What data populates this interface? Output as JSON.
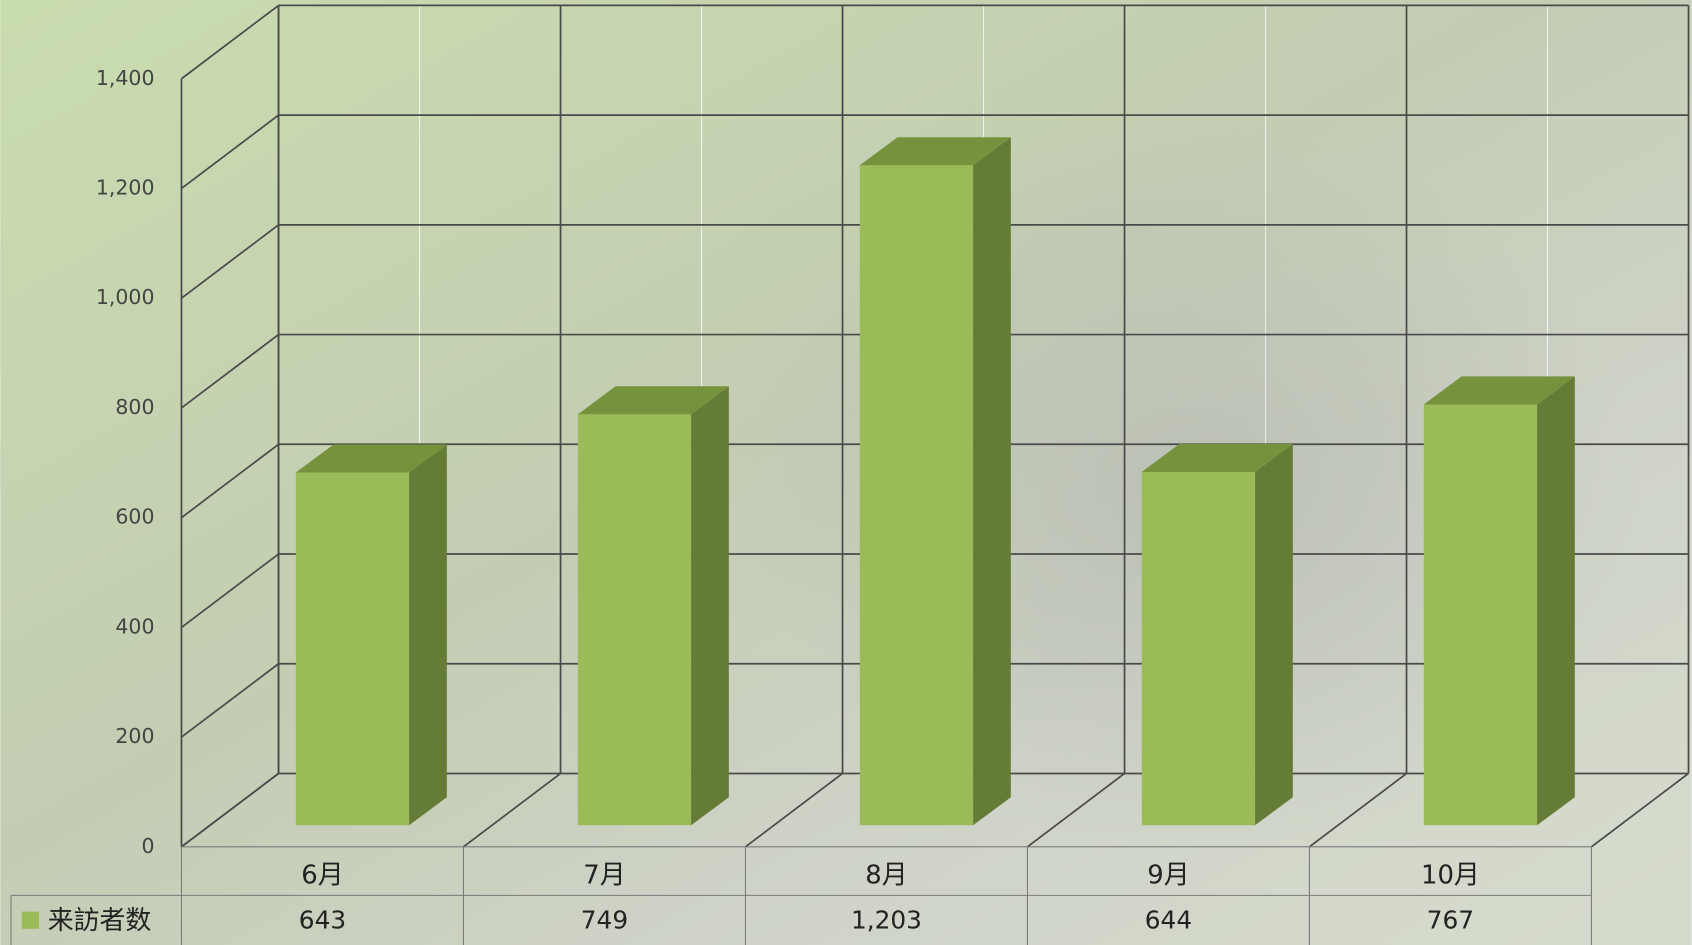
{
  "chart_data": {
    "type": "bar",
    "categories": [
      "6月",
      "7月",
      "8月",
      "9月",
      "10月"
    ],
    "series": [
      {
        "name": "来訪者数",
        "color": "#9bbb59",
        "values": [
          643,
          749,
          1203,
          644,
          767
        ],
        "value_labels": [
          "643",
          "749",
          "1,203",
          "644",
          "767"
        ]
      }
    ],
    "ylim": [
      0,
      1400
    ],
    "yticks": [
      0,
      200,
      400,
      600,
      800,
      {
        "value": 1000,
        "label": "1,000"
      },
      {
        "value": 1200,
        "label": "1,200"
      },
      {
        "value": 1400,
        "label": "1,400"
      }
    ],
    "grid": true
  }
}
